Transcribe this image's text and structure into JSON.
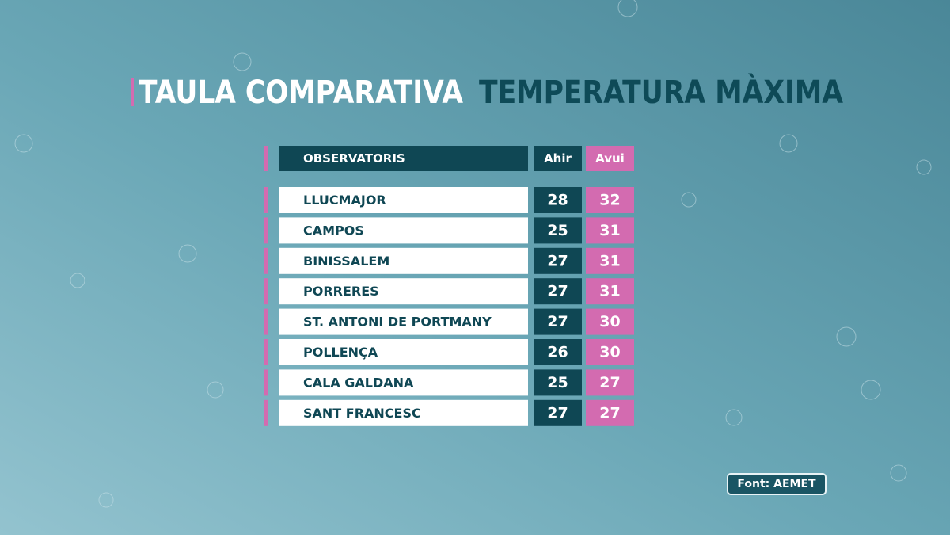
{
  "header": {
    "title": "TAULA COMPARATIVA",
    "subtitle": "TEMPERATURA MÀXIMA"
  },
  "table": {
    "columns": [
      "OBSERVATORIS",
      "Ahir",
      "Avui"
    ],
    "rows": [
      [
        "LLUCMAJOR",
        28,
        32
      ],
      [
        "CAMPOS",
        25,
        31
      ],
      [
        "BINISSALEM",
        27,
        31
      ],
      [
        "PORRERES",
        27,
        31
      ],
      [
        "ST. ANTONI DE PORTMANY",
        27,
        30
      ],
      [
        "POLLENÇA",
        26,
        30
      ],
      [
        "CALA GALDANA",
        25,
        27
      ],
      [
        "SANT FRANCESC",
        27,
        27
      ]
    ]
  },
  "source": "Font: AEMET"
}
